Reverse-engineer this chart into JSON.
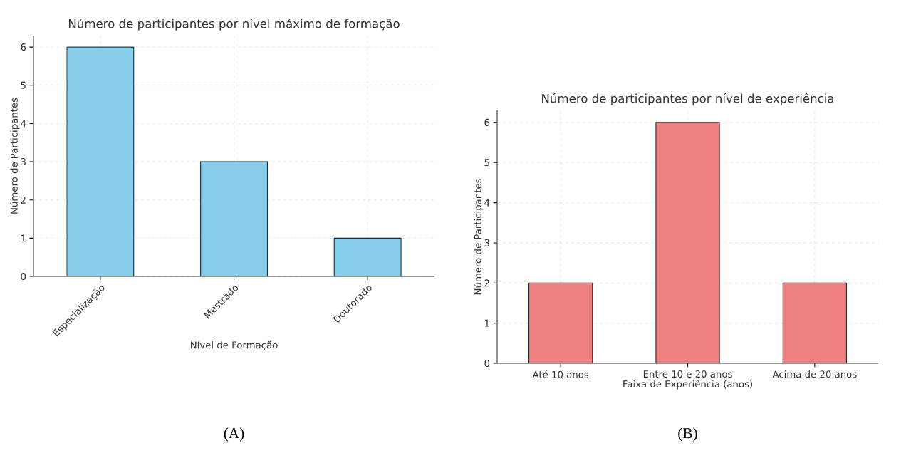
{
  "chart_data": [
    {
      "type": "bar",
      "title": "Número de participantes por nível máximo de formação",
      "xlabel": "Nível de Formação",
      "ylabel": "Número de Participantes",
      "categories": [
        "Especialização",
        "Mestrado",
        "Doutorado"
      ],
      "values": [
        6,
        3,
        1
      ],
      "color": "#87ceeb",
      "ylim": [
        0,
        6.3
      ],
      "yticks": [
        0,
        1,
        2,
        3,
        4,
        5,
        6
      ],
      "grid": true,
      "annotations": [
        "(A)"
      ]
    },
    {
      "type": "bar",
      "title": "Número de participantes por nível de experiência",
      "xlabel": "Faixa de Experiência (anos)",
      "ylabel": "Número de Participantes",
      "categories": [
        "Até 10 anos",
        "Entre 10 e 20 anos",
        "Acima de 20 anos"
      ],
      "values": [
        2,
        6,
        2
      ],
      "color": "#f08080",
      "ylim": [
        0,
        6.3
      ],
      "yticks": [
        0,
        1,
        2,
        3,
        4,
        5,
        6
      ],
      "grid": true,
      "annotations": [
        "(B)"
      ]
    }
  ]
}
